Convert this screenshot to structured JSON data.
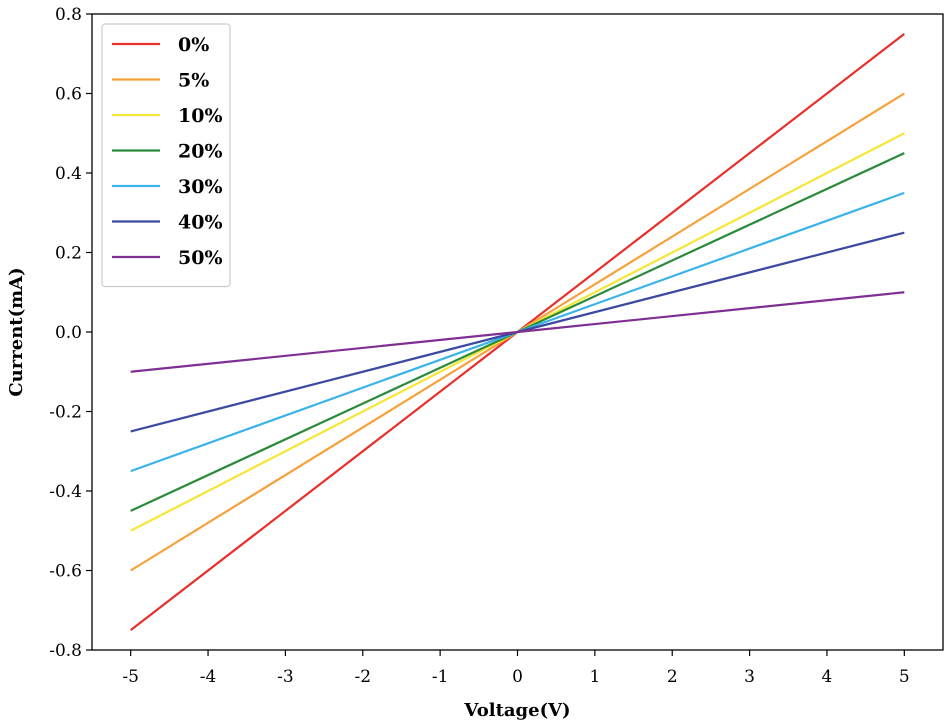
{
  "chart_data": {
    "type": "line",
    "title": "",
    "xlabel": "Voltage(V)",
    "ylabel": "Current(mA)",
    "xlim": [
      -5.5,
      5.5
    ],
    "ylim": [
      -0.8,
      0.8
    ],
    "x_ticks": [
      -5,
      -4,
      -3,
      -2,
      -1,
      0,
      1,
      2,
      3,
      4,
      5
    ],
    "x_tick_labels": [
      "-5",
      "-4",
      "-3",
      "-2",
      "-1",
      "0",
      "1",
      "2",
      "3",
      "4",
      "5"
    ],
    "y_ticks": [
      -0.8,
      -0.6,
      -0.4,
      -0.2,
      0.0,
      0.2,
      0.4,
      0.6,
      0.8
    ],
    "y_tick_labels": [
      "-0.8",
      "-0.6",
      "-0.4",
      "-0.2",
      "0.0",
      "0.2",
      "0.4",
      "0.6",
      "0.8"
    ],
    "grid": false,
    "legend_position": "top-left",
    "series": [
      {
        "name": "0%",
        "color": "#e8302c",
        "x": [
          -5,
          0,
          5
        ],
        "y": [
          -0.75,
          0.0,
          0.75
        ]
      },
      {
        "name": "5%",
        "color": "#f7a13b",
        "x": [
          -5,
          0,
          5
        ],
        "y": [
          -0.6,
          0.0,
          0.6
        ]
      },
      {
        "name": "10%",
        "color": "#f5e637",
        "x": [
          -5,
          0,
          5
        ],
        "y": [
          -0.5,
          0.0,
          0.5
        ]
      },
      {
        "name": "20%",
        "color": "#2a8a3a",
        "x": [
          -5,
          0,
          5
        ],
        "y": [
          -0.45,
          0.0,
          0.45
        ]
      },
      {
        "name": "30%",
        "color": "#3ab3e8",
        "x": [
          -5,
          0,
          5
        ],
        "y": [
          -0.35,
          0.0,
          0.35
        ]
      },
      {
        "name": "40%",
        "color": "#3c4aa0",
        "x": [
          -5,
          0,
          5
        ],
        "y": [
          -0.25,
          0.0,
          0.25
        ]
      },
      {
        "name": "50%",
        "color": "#7f2f93",
        "x": [
          -5,
          0,
          5
        ],
        "y": [
          -0.1,
          0.0,
          0.1
        ]
      }
    ]
  }
}
